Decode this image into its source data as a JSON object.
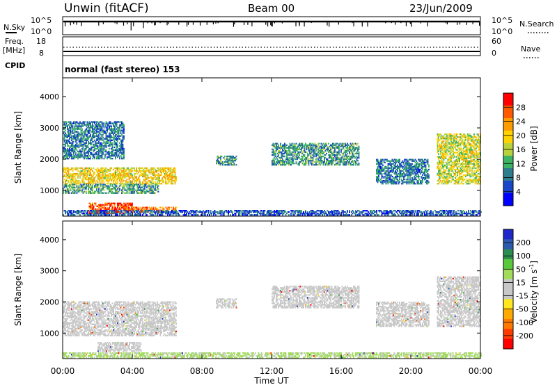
{
  "header": {
    "station": "Unwin (fitACF)",
    "beam": "Beam 00",
    "date": "23/Jun/2009"
  },
  "status_panel": {
    "nsky_label": "N.Sky",
    "nsky_ticks": [
      "10^5",
      "10^0"
    ],
    "nsearch_label": "N.Search",
    "nsearch_ticks": [
      "10^5",
      "10^0"
    ],
    "freq_label_1": "Freq.",
    "freq_label_2": "[MHz]",
    "freq_ticks": [
      "18",
      "8"
    ],
    "nave_label": "Nave",
    "nave_ticks": [
      "60",
      "0"
    ],
    "cpid_label": "CPID",
    "cpid_text": "normal (fast stereo) 153"
  },
  "axes": {
    "ylabel": "Slant Range [km]",
    "yticks": [
      "4000",
      "3000",
      "2000",
      "1000"
    ],
    "xlabel": "Time UT",
    "xticks": [
      "00:00",
      "04:00",
      "08:00",
      "12:00",
      "16:00",
      "20:00",
      "00:00"
    ]
  },
  "power_colorbar": {
    "label": "Power [dB]",
    "ticks": [
      "28",
      "24",
      "20",
      "16",
      "12",
      "8",
      "4"
    ],
    "colors": [
      "#ff0000",
      "#ff5a00",
      "#ff9c00",
      "#ffd200",
      "#b9d23c",
      "#3cb464",
      "#2d7d8c",
      "#1a46c8",
      "#0000ff"
    ]
  },
  "velocity_colorbar": {
    "label": "Velocity [m s^-1]",
    "ticks": [
      "200",
      "100",
      "50",
      "15",
      "-15",
      "-50",
      "-100",
      "-200"
    ],
    "colors": [
      "#1e28c8",
      "#2d5aaf",
      "#2d8c50",
      "#5ac83c",
      "#a0dc5a",
      "#c8c8c8",
      "#c8c8c8",
      "#ffe61e",
      "#ffaa00",
      "#ff7800",
      "#ff3c00",
      "#ff0000"
    ]
  },
  "chart_data": [
    {
      "type": "heatmap",
      "title": "Power",
      "xlabel": "Time UT",
      "ylabel": "Slant Range [km]",
      "xlim": [
        0,
        24
      ],
      "ylim": [
        180,
        4600
      ],
      "colorbar_label": "Power [dB]",
      "colorbar_range": [
        0,
        30
      ],
      "echo_regions": [
        {
          "t": [
            0.0,
            6.5
          ],
          "r": [
            1200,
            1700
          ],
          "value": 18
        },
        {
          "t": [
            0.0,
            5.5
          ],
          "r": [
            900,
            1200
          ],
          "value": 10
        },
        {
          "t": [
            1.5,
            4.0
          ],
          "r": [
            250,
            600
          ],
          "value": 26
        },
        {
          "t": [
            3.5,
            6.5
          ],
          "r": [
            300,
            450
          ],
          "value": 24
        },
        {
          "t": [
            0.0,
            3.5
          ],
          "r": [
            2000,
            3200
          ],
          "value": 8
        },
        {
          "t": [
            8.8,
            10.0
          ],
          "r": [
            1800,
            2100
          ],
          "value": 10
        },
        {
          "t": [
            12.0,
            17.0
          ],
          "r": [
            1800,
            2500
          ],
          "value": 10
        },
        {
          "t": [
            18.0,
            21.0
          ],
          "r": [
            1200,
            2000
          ],
          "value": 8
        },
        {
          "t": [
            21.5,
            24.0
          ],
          "r": [
            1200,
            2800
          ],
          "value": 16
        },
        {
          "t": [
            0.0,
            24.0
          ],
          "r": [
            200,
            350
          ],
          "value": 6
        }
      ]
    },
    {
      "type": "heatmap",
      "title": "Velocity",
      "xlabel": "Time UT",
      "ylabel": "Slant Range [km]",
      "xlim": [
        0,
        24
      ],
      "ylim": [
        180,
        4600
      ],
      "colorbar_label": "Velocity [m s^-1]",
      "colorbar_range": [
        -200,
        200
      ],
      "echo_regions": [
        {
          "t": [
            0.0,
            6.5
          ],
          "r": [
            900,
            2000
          ],
          "value": 0
        },
        {
          "t": [
            2.0,
            4.5
          ],
          "r": [
            400,
            700
          ],
          "value": -5
        },
        {
          "t": [
            8.8,
            10.0
          ],
          "r": [
            1800,
            2100
          ],
          "value": 0
        },
        {
          "t": [
            12.0,
            17.0
          ],
          "r": [
            1800,
            2500
          ],
          "value": 0
        },
        {
          "t": [
            18.0,
            21.0
          ],
          "r": [
            1200,
            2000
          ],
          "value": -5
        },
        {
          "t": [
            21.5,
            24.0
          ],
          "r": [
            1200,
            2800
          ],
          "value": 5
        },
        {
          "t": [
            0.0,
            24.0
          ],
          "r": [
            200,
            350
          ],
          "value": 40
        }
      ]
    }
  ]
}
